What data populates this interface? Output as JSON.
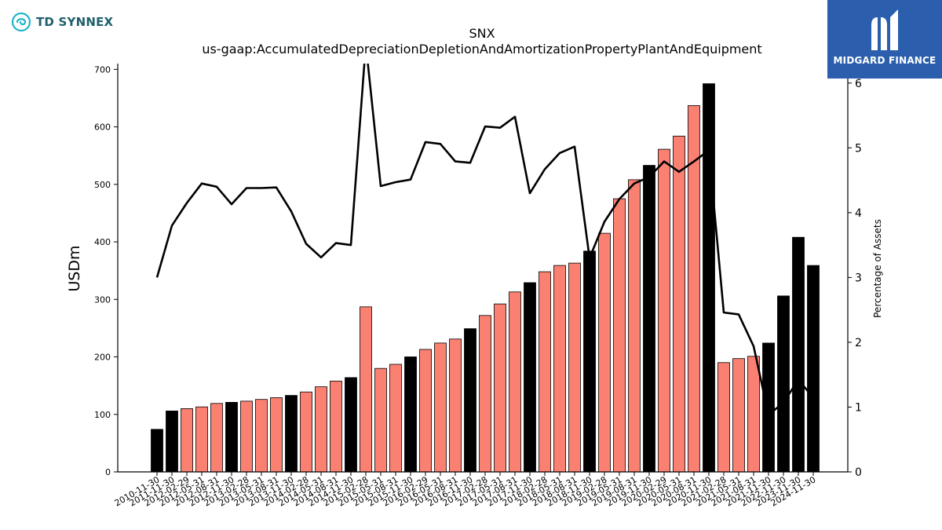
{
  "branding": {
    "left_logo_text": "TD SYNNEX",
    "right_logo_text": "MIDGARD FINANCE",
    "left_logo_icon": "td-synnex-swirl-icon",
    "right_logo_icon": "midgard-m-icon",
    "right_bg_color": "#2b5fad"
  },
  "chart_data": {
    "type": "bar",
    "title": "SNX",
    "subtitle": "us-gaap:AccumulatedDepreciationDepletionAndAmortizationPropertyPlantAndEquipment",
    "ylabel": "USDm",
    "y2label": "Percentage of Assets",
    "ylim": [
      0,
      710
    ],
    "y2lim": [
      0,
      6.3
    ],
    "yticks": [
      0,
      100,
      200,
      300,
      400,
      500,
      600,
      700
    ],
    "y2ticks": [
      0,
      1,
      2,
      3,
      4,
      5,
      6
    ],
    "colors": {
      "annual": "#000000",
      "quarterly": "#fa8072",
      "line": "#000000"
    },
    "categories": [
      "2010-11-30",
      "2011-11-30",
      "2012-02-29",
      "2012-05-31",
      "2012-08-31",
      "2012-11-30",
      "2013-02-28",
      "2013-05-31",
      "2013-08-31",
      "2013-11-30",
      "2014-02-28",
      "2014-05-31",
      "2014-08-31",
      "2014-11-30",
      "2015-02-28",
      "2015-05-31",
      "2015-08-31",
      "2015-11-30",
      "2016-02-29",
      "2016-05-31",
      "2016-08-31",
      "2016-11-30",
      "2017-02-28",
      "2017-05-31",
      "2017-08-31",
      "2017-11-30",
      "2018-02-28",
      "2018-05-31",
      "2018-08-31",
      "2018-11-30",
      "2019-02-28",
      "2019-05-31",
      "2019-08-31",
      "2019-11-30",
      "2020-02-29",
      "2020-05-31",
      "2020-08-31",
      "2020-11-30",
      "2021-02-28",
      "2021-05-31",
      "2021-08-31",
      "2021-11-30",
      "2022-11-30",
      "2023-11-30",
      "2024-11-30"
    ],
    "series": [
      {
        "kind": "bar",
        "values": [
          74,
          106,
          110,
          113,
          119,
          121,
          123,
          126,
          129,
          133,
          139,
          148,
          158,
          164,
          287,
          180,
          187,
          200,
          213,
          224,
          231,
          249,
          272,
          292,
          313,
          329,
          348,
          359,
          363,
          384,
          415,
          475,
          508,
          533,
          561,
          584,
          637,
          675,
          190,
          197,
          201,
          224,
          306,
          408,
          359
        ],
        "annual": [
          true,
          true,
          false,
          false,
          false,
          true,
          false,
          false,
          false,
          true,
          false,
          false,
          false,
          true,
          false,
          false,
          false,
          true,
          false,
          false,
          false,
          true,
          false,
          false,
          false,
          true,
          false,
          false,
          false,
          true,
          false,
          false,
          false,
          true,
          false,
          false,
          false,
          true,
          false,
          false,
          false,
          true,
          true,
          true,
          true
        ]
      },
      {
        "kind": "line",
        "axis": "right",
        "values": [
          3.0,
          3.8,
          4.15,
          4.45,
          4.4,
          4.13,
          4.38,
          4.38,
          4.39,
          4.02,
          3.52,
          3.31,
          3.53,
          3.5,
          6.6,
          4.41,
          4.47,
          4.51,
          5.09,
          5.06,
          4.79,
          4.77,
          5.33,
          5.31,
          5.48,
          4.3,
          4.67,
          4.92,
          5.02,
          3.3,
          3.86,
          4.21,
          4.45,
          4.55,
          4.79,
          4.63,
          4.79,
          4.96,
          2.46,
          2.43,
          1.94,
          0.88,
          1.07,
          1.42,
          1.15
        ]
      }
    ]
  }
}
